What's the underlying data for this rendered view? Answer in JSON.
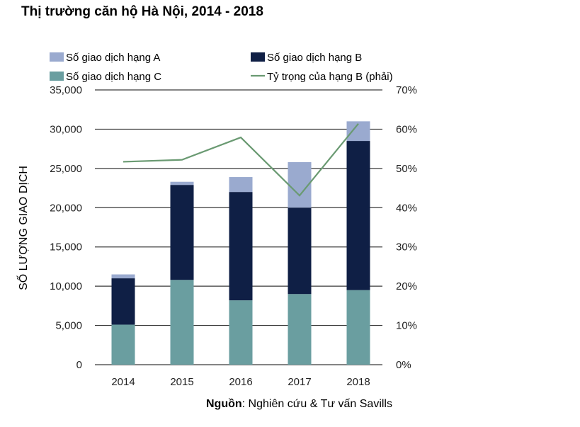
{
  "title": "Thị trường căn hộ Hà Nội, 2014 - 2018",
  "source": {
    "label": "Nguồn",
    "text": ": Nghiên cứu & Tư vấn Savills"
  },
  "colors": {
    "grade_a": "#9aaacf",
    "grade_b": "#0f1f45",
    "grade_c": "#6a9ea0",
    "line": "#6a9a72",
    "grid": "#3a3a3a"
  },
  "chart_data": {
    "type": "bar",
    "stacked": true,
    "categories": [
      "2014",
      "2015",
      "2016",
      "2017",
      "2018"
    ],
    "series": [
      {
        "name": "Số giao dịch hạng C",
        "values": [
          5100,
          10800,
          8200,
          9000,
          9500
        ],
        "color": "#6a9ea0"
      },
      {
        "name": "Số giao dịch hạng B",
        "values": [
          5900,
          12100,
          13800,
          11000,
          19000
        ],
        "color": "#0f1f45"
      },
      {
        "name": "Số giao dịch hạng A",
        "values": [
          500,
          400,
          1900,
          5800,
          2500
        ],
        "color": "#9aaacf"
      }
    ],
    "line_series": {
      "name": "Tỷ trọng của hạng B (phải)",
      "values": [
        51.7,
        52.2,
        57.9,
        43.1,
        61.4
      ],
      "axis": "right",
      "color": "#6a9a72"
    },
    "ylabel": "SỐ LƯỢNG GIAO DỊCH",
    "ylim": [
      0,
      35000
    ],
    "y_ticks": [
      "0",
      "5,000",
      "10,000",
      "15,000",
      "20,000",
      "25,000",
      "30,000",
      "35,000"
    ],
    "y2lim": [
      0,
      70
    ],
    "y2_ticks": [
      "0%",
      "10%",
      "20%",
      "30%",
      "40%",
      "50%",
      "60%",
      "70%"
    ],
    "grid": true,
    "legend_position": "top",
    "legend": [
      {
        "label": "Số giao dịch hạng A",
        "kind": "box",
        "color": "#9aaacf"
      },
      {
        "label": "Số giao dịch hạng B",
        "kind": "box",
        "color": "#0f1f45"
      },
      {
        "label": "Số giao dịch hạng C",
        "kind": "box",
        "color": "#6a9ea0"
      },
      {
        "label": "Tỷ trọng của hạng B (phải)",
        "kind": "line",
        "color": "#6a9a72"
      }
    ]
  }
}
